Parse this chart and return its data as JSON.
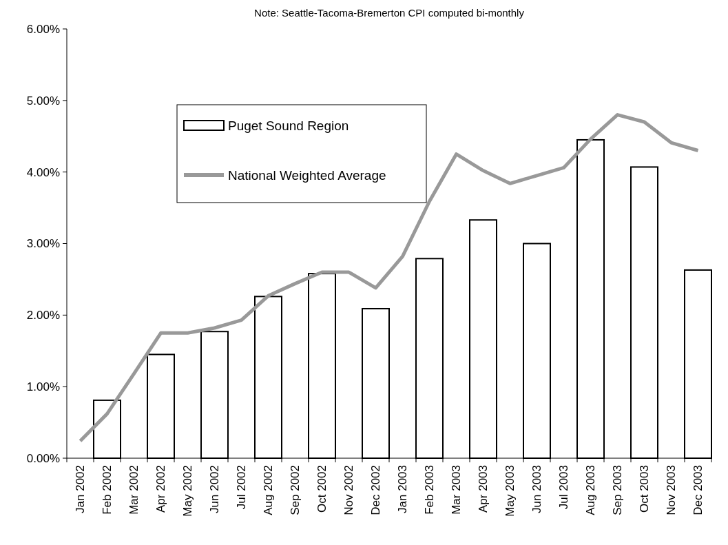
{
  "chart_data": {
    "type": "bar",
    "annotations": [
      "Note: Seattle-Tacoma-Bremerton CPI computed bi-monthly"
    ],
    "categories": [
      "Jan 2002",
      "Feb 2002",
      "Mar 2002",
      "Apr 2002",
      "May 2002",
      "Jun 2002",
      "Jul 2002",
      "Aug 2002",
      "Sep 2002",
      "Oct 2002",
      "Nov 2002",
      "Dec 2002",
      "Jan 2003",
      "Feb 2003",
      "Mar 2003",
      "Apr 2003",
      "May 2003",
      "Jun 2003",
      "Jul 2003",
      "Aug 2003",
      "Sep 2003",
      "Oct 2003",
      "Nov 2003",
      "Dec 2003"
    ],
    "series": [
      {
        "name": "Puget Sound Region",
        "color": "#ffffff",
        "values": [
          null,
          0.81,
          null,
          1.45,
          null,
          1.77,
          null,
          2.26,
          null,
          2.58,
          null,
          2.09,
          null,
          2.79,
          null,
          3.33,
          null,
          3.0,
          null,
          4.45,
          null,
          4.07,
          null,
          2.63
        ]
      },
      {
        "name": "National Weighted Average",
        "type": "line",
        "color": "#999999",
        "values": [
          0.24,
          0.62,
          1.18,
          1.75,
          1.75,
          1.82,
          1.93,
          2.27,
          2.44,
          2.6,
          2.6,
          2.38,
          2.82,
          3.59,
          4.25,
          4.02,
          3.84,
          3.95,
          4.06,
          4.46,
          4.8,
          4.7,
          4.41,
          4.3
        ]
      }
    ],
    "ylim": [
      0,
      6
    ],
    "yticks": [
      {
        "value": 0,
        "label": "0.00%"
      },
      {
        "value": 1,
        "label": "1.00%"
      },
      {
        "value": 2,
        "label": "2.00%"
      },
      {
        "value": 3,
        "label": "3.00%"
      },
      {
        "value": 4,
        "label": "4.00%"
      },
      {
        "value": 5,
        "label": "5.00%"
      },
      {
        "value": 6,
        "label": "6.00%"
      }
    ],
    "legend": "top",
    "marker": "none",
    "line_style": "solid"
  }
}
